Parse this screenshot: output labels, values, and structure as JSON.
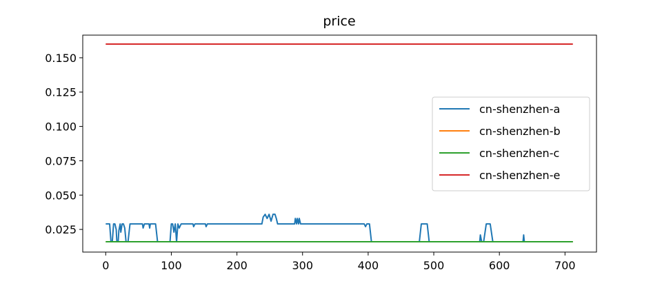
{
  "chart_data": {
    "type": "line",
    "title": "price",
    "xlabel": "",
    "ylabel": "",
    "xlim": [
      -35,
      748
    ],
    "ylim": [
      0.0085,
      0.1665
    ],
    "x_ticks": [
      0,
      100,
      200,
      300,
      400,
      500,
      600,
      700
    ],
    "y_ticks": [
      0.025,
      0.05,
      0.075,
      0.1,
      0.125,
      0.15
    ],
    "y_tick_labels": [
      "0.025",
      "0.050",
      "0.075",
      "0.100",
      "0.125",
      "0.150"
    ],
    "grid": false,
    "legend_position": "center-right",
    "series": [
      {
        "name": "cn-shenzhen-a",
        "color": "#1f77b4",
        "points": [
          [
            0,
            0.029
          ],
          [
            6,
            0.029
          ],
          [
            8,
            0.016
          ],
          [
            10,
            0.016
          ],
          [
            12,
            0.029
          ],
          [
            14,
            0.029
          ],
          [
            16,
            0.025
          ],
          [
            17,
            0.016
          ],
          [
            19,
            0.016
          ],
          [
            20,
            0.024
          ],
          [
            22,
            0.029
          ],
          [
            23,
            0.023
          ],
          [
            25,
            0.029
          ],
          [
            27,
            0.029
          ],
          [
            29,
            0.026
          ],
          [
            31,
            0.016
          ],
          [
            34,
            0.016
          ],
          [
            37,
            0.029
          ],
          [
            56,
            0.029
          ],
          [
            57,
            0.026
          ],
          [
            59,
            0.029
          ],
          [
            66,
            0.029
          ],
          [
            67,
            0.026
          ],
          [
            68,
            0.029
          ],
          [
            76,
            0.029
          ],
          [
            79,
            0.016
          ],
          [
            98,
            0.016
          ],
          [
            100,
            0.029
          ],
          [
            102,
            0.029
          ],
          [
            104,
            0.023
          ],
          [
            106,
            0.029
          ],
          [
            108,
            0.016
          ],
          [
            110,
            0.029
          ],
          [
            112,
            0.026
          ],
          [
            115,
            0.029
          ],
          [
            133,
            0.029
          ],
          [
            134,
            0.027
          ],
          [
            136,
            0.029
          ],
          [
            152,
            0.029
          ],
          [
            153,
            0.027
          ],
          [
            155,
            0.029
          ],
          [
            238,
            0.029
          ],
          [
            240,
            0.034
          ],
          [
            243,
            0.036
          ],
          [
            246,
            0.033
          ],
          [
            249,
            0.036
          ],
          [
            252,
            0.031
          ],
          [
            255,
            0.036
          ],
          [
            258,
            0.036
          ],
          [
            260,
            0.033
          ],
          [
            262,
            0.029
          ],
          [
            288,
            0.029
          ],
          [
            289,
            0.033
          ],
          [
            291,
            0.029
          ],
          [
            292,
            0.033
          ],
          [
            294,
            0.029
          ],
          [
            295,
            0.033
          ],
          [
            297,
            0.029
          ],
          [
            394,
            0.029
          ],
          [
            396,
            0.027
          ],
          [
            398,
            0.029
          ],
          [
            402,
            0.029
          ],
          [
            405,
            0.016
          ],
          [
            478,
            0.016
          ],
          [
            481,
            0.029
          ],
          [
            490,
            0.029
          ],
          [
            493,
            0.016
          ],
          [
            570,
            0.016
          ],
          [
            571,
            0.021
          ],
          [
            573,
            0.016
          ],
          [
            576,
            0.016
          ],
          [
            580,
            0.029
          ],
          [
            586,
            0.029
          ],
          [
            590,
            0.016
          ],
          [
            636,
            0.016
          ],
          [
            637,
            0.021
          ],
          [
            638,
            0.016
          ],
          [
            712,
            0.016
          ]
        ]
      },
      {
        "name": "cn-shenzhen-b",
        "color": "#ff7f0e",
        "points": [
          [
            0,
            0.016
          ],
          [
            712,
            0.016
          ]
        ]
      },
      {
        "name": "cn-shenzhen-c",
        "color": "#2ca02c",
        "points": [
          [
            0,
            0.016
          ],
          [
            712,
            0.016
          ]
        ]
      },
      {
        "name": "cn-shenzhen-e",
        "color": "#d62728",
        "points": [
          [
            0,
            0.16
          ],
          [
            712,
            0.16
          ]
        ]
      }
    ]
  }
}
